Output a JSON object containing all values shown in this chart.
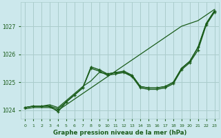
{
  "background_color": "#cce8ec",
  "grid_color": "#aacccc",
  "line_color": "#1a5c1a",
  "title": "Graphe pression niveau de la mer (hPa)",
  "ylim": [
    1023.7,
    1027.85
  ],
  "xlim": [
    -0.5,
    23.5
  ],
  "yticks": [
    1024,
    1025,
    1026,
    1027
  ],
  "xticks": [
    0,
    1,
    2,
    3,
    4,
    5,
    6,
    7,
    8,
    9,
    10,
    11,
    12,
    13,
    14,
    15,
    16,
    17,
    18,
    19,
    20,
    21,
    22,
    23
  ],
  "series": [
    {
      "y": [
        1024.1,
        1024.15,
        1024.15,
        1024.15,
        1024.05,
        1024.3,
        1024.55,
        1024.8,
        1025.55,
        1025.45,
        1025.3,
        1025.35,
        1025.4,
        1025.25,
        1024.85,
        1024.8,
        1024.8,
        1024.85,
        1025.0,
        1025.5,
        1025.75,
        1026.25,
        1027.1,
        1027.55
      ],
      "marker": true,
      "lw": 1.0
    },
    {
      "y": [
        1024.1,
        1024.15,
        1024.15,
        1024.15,
        1023.95,
        1024.3,
        1024.55,
        1024.8,
        1025.5,
        1025.4,
        1025.25,
        1025.3,
        1025.35,
        1025.2,
        1024.8,
        1024.75,
        1024.75,
        1024.8,
        1024.95,
        1025.45,
        1025.7,
        1026.15,
        1027.05,
        1027.5
      ],
      "marker": true,
      "lw": 1.0
    },
    {
      "y": [
        1024.1,
        1024.15,
        1024.15,
        1024.2,
        1024.1,
        1024.35,
        1024.6,
        1024.85,
        1025.05,
        1025.35,
        1025.3,
        1025.35,
        1025.35,
        1025.25,
        1024.85,
        1024.8,
        1024.8,
        1024.85,
        1025.0,
        1025.5,
        1025.75,
        1026.25,
        1027.1,
        1027.55
      ],
      "marker": false,
      "lw": 0.9
    },
    {
      "y": [
        1024.05,
        1024.1,
        1024.1,
        1024.1,
        1024.0,
        1024.2,
        1024.4,
        1024.6,
        1024.8,
        1025.0,
        1025.2,
        1025.4,
        1025.6,
        1025.8,
        1026.0,
        1026.2,
        1026.4,
        1026.6,
        1026.8,
        1027.0,
        1027.1,
        1027.2,
        1027.4,
        1027.6
      ],
      "marker": false,
      "lw": 0.9
    }
  ]
}
